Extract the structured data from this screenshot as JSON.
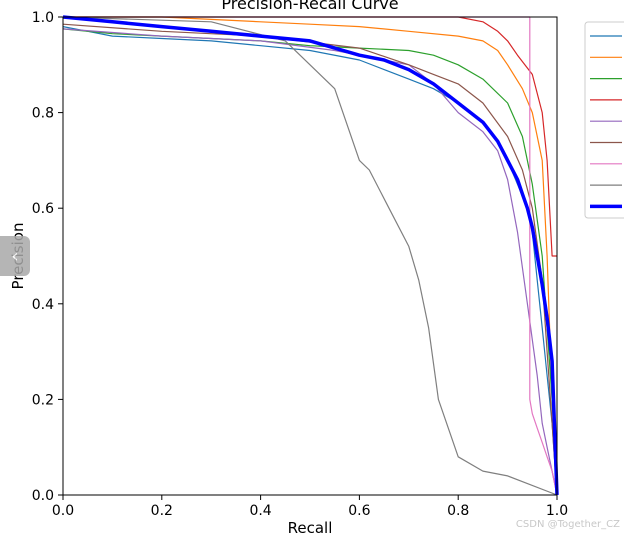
{
  "chart_data": {
    "type": "line",
    "title": "Precision-Recall Curve",
    "xlabel": "Recall",
    "ylabel": "Precision",
    "xlim": [
      0,
      1
    ],
    "ylim": [
      0,
      1
    ],
    "xticks": [
      "0.0",
      "0.2",
      "0.4",
      "0.6",
      "0.8",
      "1.0"
    ],
    "yticks": [
      "0.0",
      "0.2",
      "0.4",
      "0.6",
      "0.8",
      "1.0"
    ],
    "grid": false,
    "legend_position": "right",
    "series": [
      {
        "color": "#1f77b4",
        "x": [
          0,
          0.05,
          0.1,
          0.2,
          0.3,
          0.4,
          0.5,
          0.6,
          0.65,
          0.7,
          0.75,
          0.8,
          0.85,
          0.88,
          0.9,
          0.92,
          0.94,
          0.95,
          0.96,
          0.97,
          0.98,
          0.99,
          1.0
        ],
        "y": [
          0.98,
          0.97,
          0.96,
          0.955,
          0.95,
          0.94,
          0.93,
          0.91,
          0.89,
          0.87,
          0.85,
          0.82,
          0.78,
          0.74,
          0.7,
          0.65,
          0.6,
          0.55,
          0.45,
          0.35,
          0.25,
          0.15,
          0
        ]
      },
      {
        "color": "#ff7f0e",
        "x": [
          0,
          0.2,
          0.4,
          0.5,
          0.6,
          0.7,
          0.8,
          0.85,
          0.88,
          0.9,
          0.93,
          0.95,
          0.97,
          0.98,
          0.99,
          1.0
        ],
        "y": [
          1.0,
          1.0,
          0.99,
          0.985,
          0.98,
          0.97,
          0.96,
          0.95,
          0.93,
          0.9,
          0.85,
          0.8,
          0.7,
          0.5,
          0.2,
          0
        ]
      },
      {
        "color": "#2ca02c",
        "x": [
          0,
          0.1,
          0.2,
          0.3,
          0.4,
          0.5,
          0.6,
          0.7,
          0.75,
          0.8,
          0.85,
          0.9,
          0.93,
          0.95,
          0.97,
          0.98,
          0.99,
          1.0
        ],
        "y": [
          0.975,
          0.965,
          0.96,
          0.955,
          0.95,
          0.94,
          0.935,
          0.93,
          0.92,
          0.9,
          0.87,
          0.82,
          0.75,
          0.65,
          0.5,
          0.35,
          0.2,
          0
        ]
      },
      {
        "color": "#d62728",
        "x": [
          0,
          0.3,
          0.6,
          0.8,
          0.85,
          0.88,
          0.9,
          0.92,
          0.95,
          0.97,
          0.98,
          0.99,
          1.0
        ],
        "y": [
          1.0,
          1.0,
          1.0,
          1.0,
          0.99,
          0.97,
          0.95,
          0.92,
          0.88,
          0.8,
          0.7,
          0.5,
          0.5
        ]
      },
      {
        "color": "#9467bd",
        "x": [
          0,
          0.2,
          0.4,
          0.55,
          0.6,
          0.65,
          0.7,
          0.75,
          0.8,
          0.85,
          0.88,
          0.9,
          0.92,
          0.94,
          0.96,
          0.97,
          0.98,
          0.99,
          1.0
        ],
        "y": [
          0.975,
          0.96,
          0.95,
          0.93,
          0.92,
          0.91,
          0.9,
          0.86,
          0.8,
          0.76,
          0.72,
          0.66,
          0.55,
          0.4,
          0.25,
          0.15,
          0.1,
          0.05,
          0
        ]
      },
      {
        "color": "#8c564b",
        "x": [
          0,
          0.2,
          0.4,
          0.6,
          0.7,
          0.75,
          0.8,
          0.85,
          0.9,
          0.93,
          0.95,
          0.97,
          0.98,
          0.99,
          1.0
        ],
        "y": [
          0.985,
          0.97,
          0.96,
          0.935,
          0.9,
          0.88,
          0.86,
          0.82,
          0.75,
          0.68,
          0.6,
          0.45,
          0.3,
          0.15,
          0
        ]
      },
      {
        "color": "#e377c2",
        "x": [
          0,
          0.94,
          0.945,
          0.945,
          0.95,
          0.96,
          0.97,
          0.98,
          0.99,
          1.0
        ],
        "y": [
          1.0,
          1.0,
          1.0,
          0.2,
          0.17,
          0.14,
          0.11,
          0.08,
          0.05,
          0
        ]
      },
      {
        "color": "#7f7f7f",
        "x": [
          0,
          0.3,
          0.45,
          0.5,
          0.55,
          0.6,
          0.62,
          0.66,
          0.7,
          0.72,
          0.74,
          0.76,
          0.8,
          0.85,
          0.9,
          1.0
        ],
        "y": [
          1.0,
          0.99,
          0.95,
          0.9,
          0.85,
          0.7,
          0.68,
          0.6,
          0.52,
          0.45,
          0.35,
          0.2,
          0.08,
          0.05,
          0.04,
          0
        ]
      },
      {
        "color": "#0000ff",
        "x": [
          0,
          0.1,
          0.2,
          0.3,
          0.4,
          0.5,
          0.55,
          0.6,
          0.65,
          0.7,
          0.75,
          0.8,
          0.85,
          0.88,
          0.9,
          0.92,
          0.93,
          0.94,
          0.95,
          0.96,
          0.97,
          0.98,
          0.99,
          1.0
        ],
        "y": [
          1.0,
          0.99,
          0.98,
          0.97,
          0.96,
          0.95,
          0.935,
          0.92,
          0.91,
          0.89,
          0.86,
          0.82,
          0.78,
          0.74,
          0.7,
          0.66,
          0.63,
          0.6,
          0.56,
          0.5,
          0.44,
          0.37,
          0.28,
          0
        ]
      }
    ]
  },
  "handle_glyph": "‹",
  "watermark": "CSDN @Together_CZ"
}
